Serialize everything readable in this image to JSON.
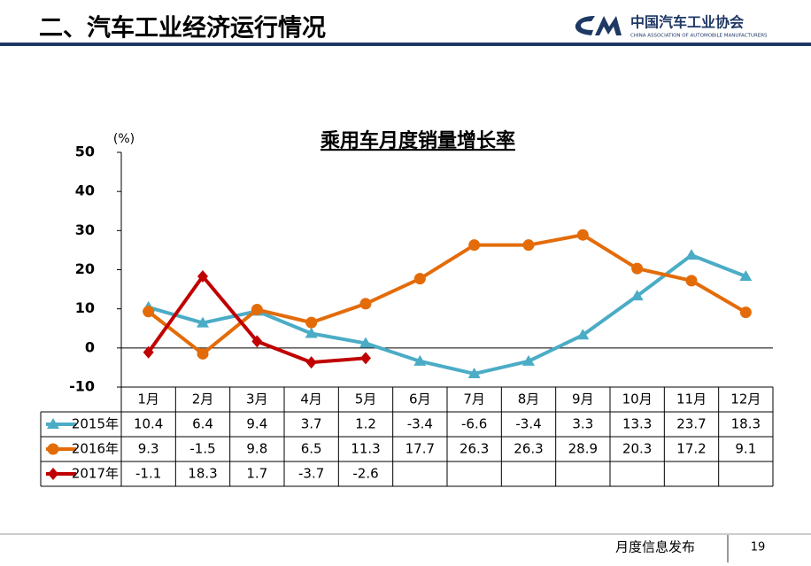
{
  "header": {
    "title": "二、汽车工业经济运行情况",
    "logo": "中国汽车工业协会",
    "logo_sub": "CHINA ASSOCIATION OF AUTOMOBILE MANUFACTURERS"
  },
  "footer": {
    "text": "月度信息发布",
    "page": "19"
  },
  "chart_data": {
    "type": "line",
    "title": "乘用车月度销量增长率",
    "y_label": "(%)",
    "categories": [
      "1月",
      "2月",
      "3月",
      "4月",
      "5月",
      "6月",
      "7月",
      "8月",
      "9月",
      "10月",
      "11月",
      "12月"
    ],
    "series": [
      {
        "name": "2015年",
        "color": "#4bacc6",
        "marker": "triangle",
        "values": [
          10.4,
          6.4,
          9.4,
          3.7,
          1.2,
          -3.4,
          -6.6,
          -3.4,
          3.3,
          13.3,
          23.7,
          18.3
        ]
      },
      {
        "name": "2016年",
        "color": "#e36c09",
        "marker": "circle",
        "values": [
          9.3,
          -1.5,
          9.8,
          6.5,
          11.3,
          17.7,
          26.3,
          26.3,
          28.9,
          20.3,
          17.2,
          9.1
        ]
      },
      {
        "name": "2017年",
        "color": "#c00000",
        "marker": "diamond",
        "values": [
          -1.1,
          18.3,
          1.7,
          -3.7,
          -2.6,
          null,
          null,
          null,
          null,
          null,
          null,
          null
        ]
      }
    ],
    "ylim": [
      -10,
      50
    ],
    "yticks": [
      -10,
      0,
      10,
      20,
      30,
      40,
      50
    ],
    "grid": false
  }
}
